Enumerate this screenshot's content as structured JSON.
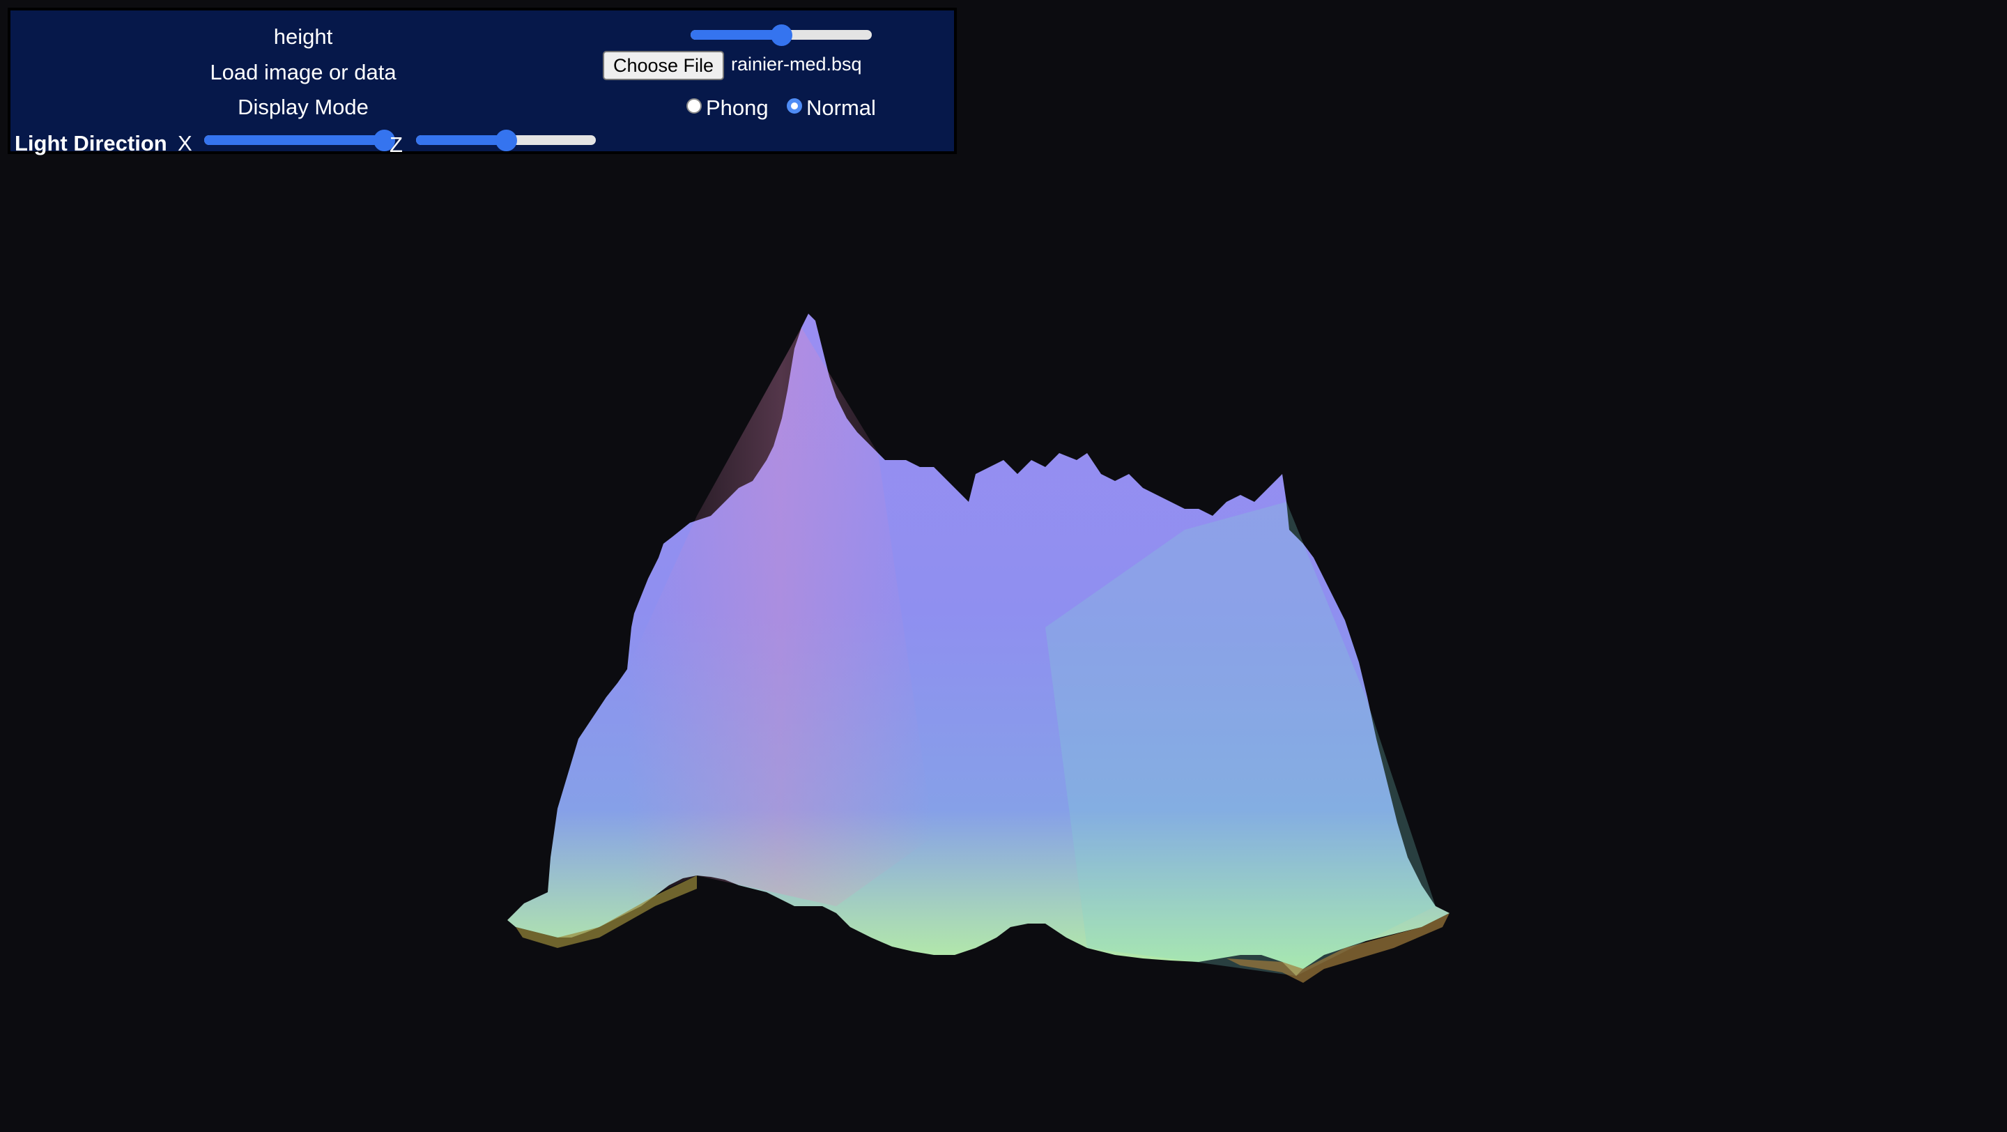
{
  "panel": {
    "height_label": "height",
    "height_slider_value": 0.5,
    "load_label": "Load image or data",
    "file_button_label": "Choose File",
    "file_name": "rainier-med.bsq",
    "display_mode_label": "Display Mode",
    "display_modes": [
      {
        "label": "Phong",
        "checked": false
      },
      {
        "label": "Normal",
        "checked": true
      }
    ],
    "light_direction_label": "Light Direction",
    "light_x_label": "X",
    "light_x_value": 1.0,
    "light_z_label": "Z",
    "light_z_value": 0.5
  },
  "colors": {
    "page_background": "#0c0c10",
    "panel_background": "#06184a",
    "slider_accent": "#3574ef",
    "terrain_violet": "#9b8cf0",
    "terrain_pink": "#e48bbf",
    "terrain_green": "#9ef0a0"
  },
  "viewport": {
    "render": "normal-mapped heightfield terrain"
  }
}
